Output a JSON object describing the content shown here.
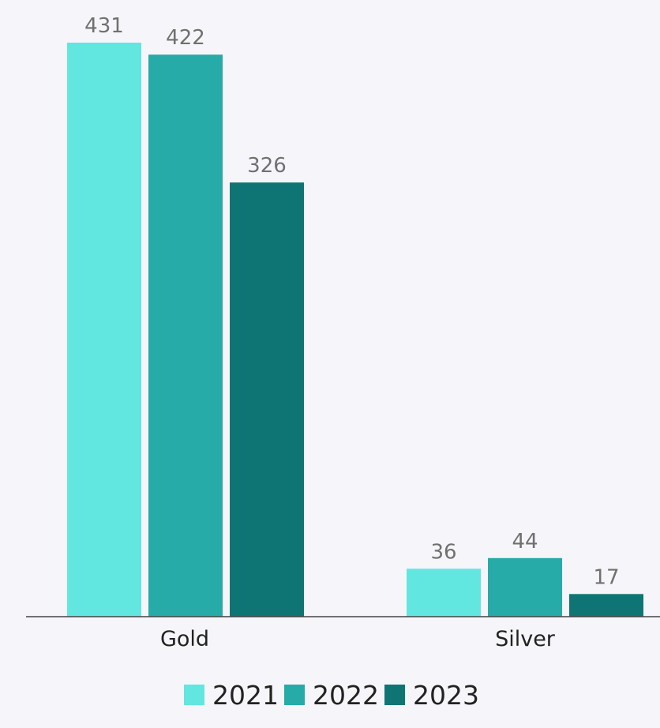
{
  "chart_data": {
    "type": "bar",
    "categories": [
      "Gold",
      "Silver"
    ],
    "series": [
      {
        "name": "2021",
        "values": [
          431,
          36
        ],
        "color": "#62e6e0"
      },
      {
        "name": "2022",
        "values": [
          422,
          44
        ],
        "color": "#27aba9"
      },
      {
        "name": "2023",
        "values": [
          326,
          17
        ],
        "color": "#0f7574"
      }
    ],
    "title": "",
    "xlabel": "",
    "ylabel": "",
    "ylim": [
      0,
      431
    ],
    "grid": false,
    "legend_position": "bottom",
    "data_labels": true
  },
  "colors": {
    "background": "#f6f6fa",
    "axis": "#444444",
    "value_label": "#707070",
    "text": "#222222"
  }
}
